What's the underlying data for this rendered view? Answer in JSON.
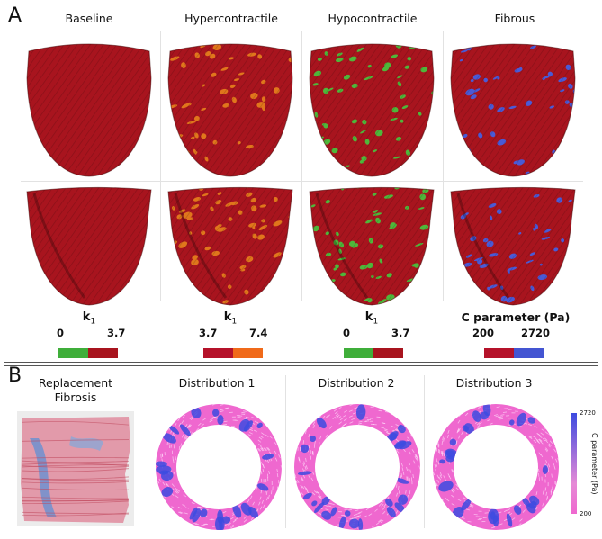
{
  "panel_a": {
    "label": "A",
    "columns": [
      {
        "title": "Baseline",
        "colors": {
          "base": "#a8141e",
          "spot": "#a8141e"
        },
        "spot_amount": 0
      },
      {
        "title": "Hypercontractile",
        "colors": {
          "base": "#a8141e",
          "spot": "#e0761c"
        },
        "spot_amount": 0.22
      },
      {
        "title": "Hypocontractile",
        "colors": {
          "base": "#a8141e",
          "spot": "#4fb63a"
        },
        "spot_amount": 0.26
      },
      {
        "title": "Fibrous",
        "colors": {
          "base": "#a8141e",
          "spot": "#4a5ad6"
        },
        "spot_amount": 0.2
      }
    ],
    "legends": [
      {
        "label": "k",
        "sub": "1",
        "min": "0",
        "max": "3.7",
        "colors": [
          "#3fae3a",
          "#a8141e"
        ]
      },
      {
        "label": "k",
        "sub": "1",
        "min": "3.7",
        "max": "7.4",
        "colors": [
          "#b5122a",
          "#f06a1a"
        ]
      },
      {
        "label": "k",
        "sub": "1",
        "min": "0",
        "max": "3.7",
        "colors": [
          "#3fae3a",
          "#a8141e"
        ]
      },
      {
        "label": "C parameter (Pa)",
        "sub": "",
        "min": "200",
        "max": "2720",
        "colors": [
          "#b5122a",
          "#4455d2"
        ]
      }
    ]
  },
  "panel_b": {
    "label": "B",
    "tissue_title_line1": "Replacement",
    "tissue_title_line2": "Fibrosis",
    "distributions": [
      "Distribution 1",
      "Distribution 2",
      "Distribution 3"
    ],
    "colorbar": {
      "title": "C parameter (Pa)",
      "max": "2720",
      "min": "200",
      "colors": {
        "high": "#3d4be0",
        "low": "#ef68cf"
      }
    }
  }
}
